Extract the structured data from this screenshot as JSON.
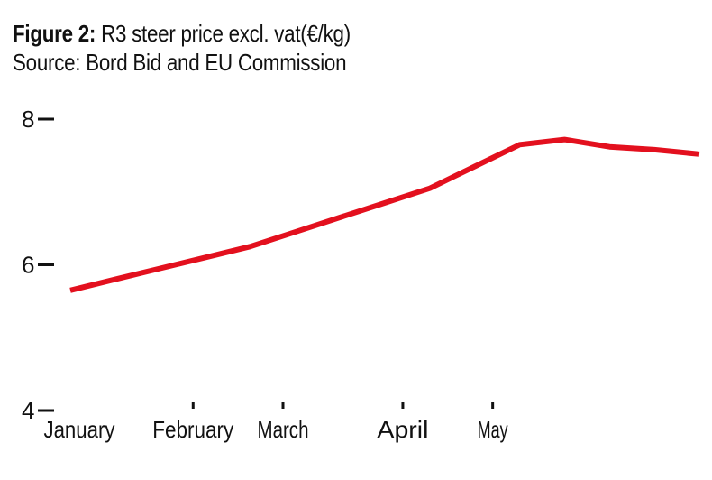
{
  "chart_data": {
    "type": "line",
    "title_bold": "Figure 2:",
    "title": "R3 steer price excl. vat(€/kg)",
    "subtitle": "Source: Bord Bid and EU Commission",
    "xlabel": "",
    "ylabel": "",
    "ylim": [
      4,
      8
    ],
    "yticks": [
      4,
      6,
      8
    ],
    "ytick_labels": [
      "4",
      "6",
      "8"
    ],
    "xlim": [
      0,
      21
    ],
    "x_ticks": [
      {
        "label": "January",
        "x": 0.3
      },
      {
        "label": "February",
        "x": 4.1
      },
      {
        "label": "March",
        "x": 7.1
      },
      {
        "label": "April",
        "x": 11.1
      },
      {
        "label": "May",
        "x": 14.1
      }
    ],
    "series": [
      {
        "name": "R3 steer price",
        "color": "#e3101e",
        "x": [
          0,
          1.5,
          3,
          4.5,
          6,
          7.5,
          9,
          10.5,
          12,
          13.5,
          15,
          16.5,
          18,
          19.5,
          21
        ],
        "values": [
          5.65,
          5.8,
          5.95,
          6.1,
          6.25,
          6.45,
          6.65,
          6.85,
          7.05,
          7.35,
          7.65,
          7.72,
          7.62,
          7.58,
          7.52
        ]
      }
    ]
  }
}
